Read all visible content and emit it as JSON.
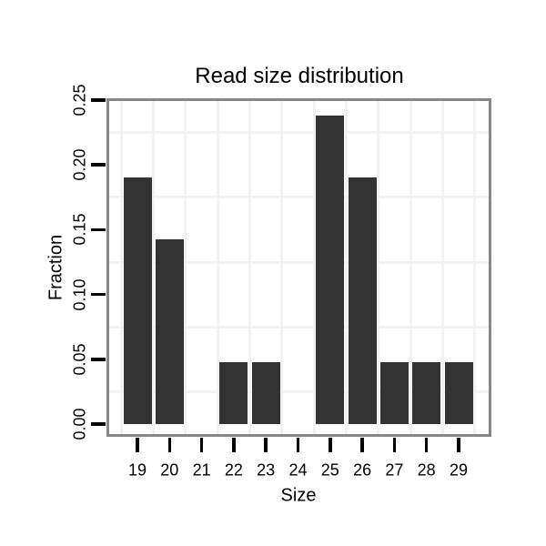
{
  "chart_data": {
    "type": "bar",
    "title": "Read size distribution",
    "xlabel": "Size",
    "ylabel": "Fraction",
    "categories": [
      "19",
      "20",
      "21",
      "22",
      "23",
      "24",
      "25",
      "26",
      "27",
      "28",
      "29"
    ],
    "values": [
      0.1905,
      0.1429,
      0,
      0.0476,
      0.0476,
      0,
      0.2381,
      0.1905,
      0.0476,
      0.0476,
      0.0476
    ],
    "y_ticks": [
      "0.00",
      "0.05",
      "0.10",
      "0.15",
      "0.20",
      "0.25"
    ],
    "y_tick_values": [
      0.0,
      0.05,
      0.1,
      0.15,
      0.2,
      0.25
    ],
    "ylim": [
      0,
      0.26
    ],
    "grid": "light minor gridlines midway between ticks, both axes",
    "legend": "none",
    "colors": {
      "bar": "#333333",
      "grid": "#f2f2f2",
      "panel_border": "#878787",
      "tick": "#000000",
      "text": "#000000",
      "background": "#ffffff"
    }
  }
}
